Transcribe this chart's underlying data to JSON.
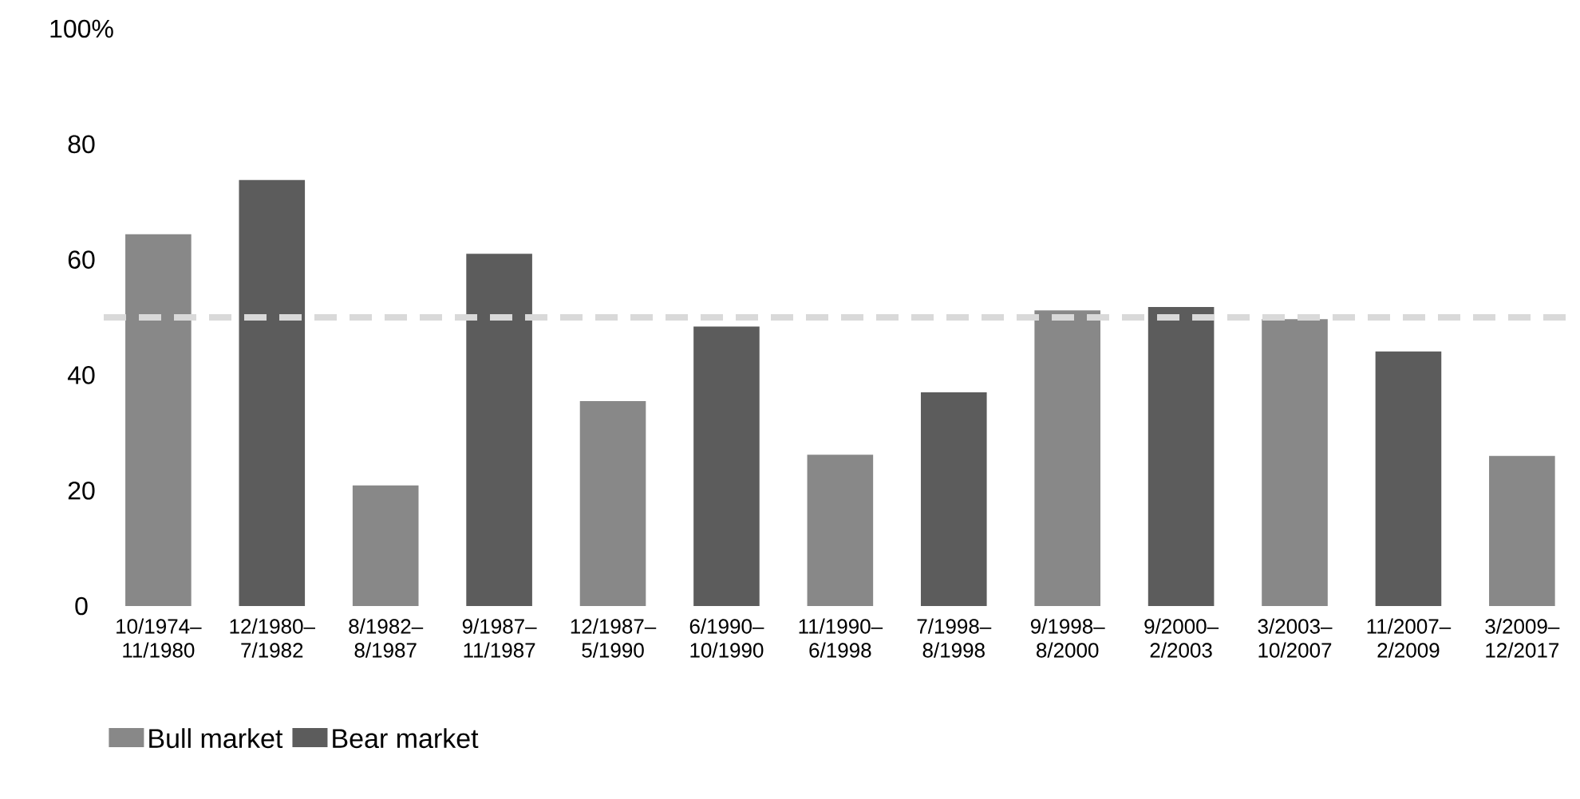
{
  "chart_data": {
    "type": "bar",
    "categories": [
      "10/1974–11/1980",
      "12/1980–7/1982",
      "8/1982–8/1987",
      "9/1987–11/1987",
      "12/1987–5/1990",
      "6/1990–10/1990",
      "11/1990–6/1998",
      "7/1998–8/1998",
      "9/1998–8/2000",
      "9/2000–2/2003",
      "3/2003–10/2007",
      "11/2007–2/2009",
      "3/2009–12/2017"
    ],
    "series": [
      {
        "name": "Bull market",
        "color": "#888888",
        "values": [
          64.4,
          null,
          20.9,
          null,
          35.5,
          null,
          26.2,
          null,
          51.2,
          null,
          49.7,
          null,
          26.0
        ]
      },
      {
        "name": "Bear market",
        "color": "#5c5c5c",
        "values": [
          null,
          73.8,
          null,
          61.0,
          null,
          48.4,
          null,
          37.0,
          null,
          51.8,
          null,
          44.1,
          null
        ]
      }
    ],
    "ylim": [
      0,
      100
    ],
    "yticks": [
      0,
      20,
      40,
      60,
      80,
      {
        "value": 100,
        "label": "100%"
      }
    ],
    "ref_lines": [
      {
        "axis": "y",
        "value": 50,
        "color": "#d9d9d9",
        "line_style": "dashed"
      }
    ],
    "grid": false,
    "legend": "bottom left"
  }
}
